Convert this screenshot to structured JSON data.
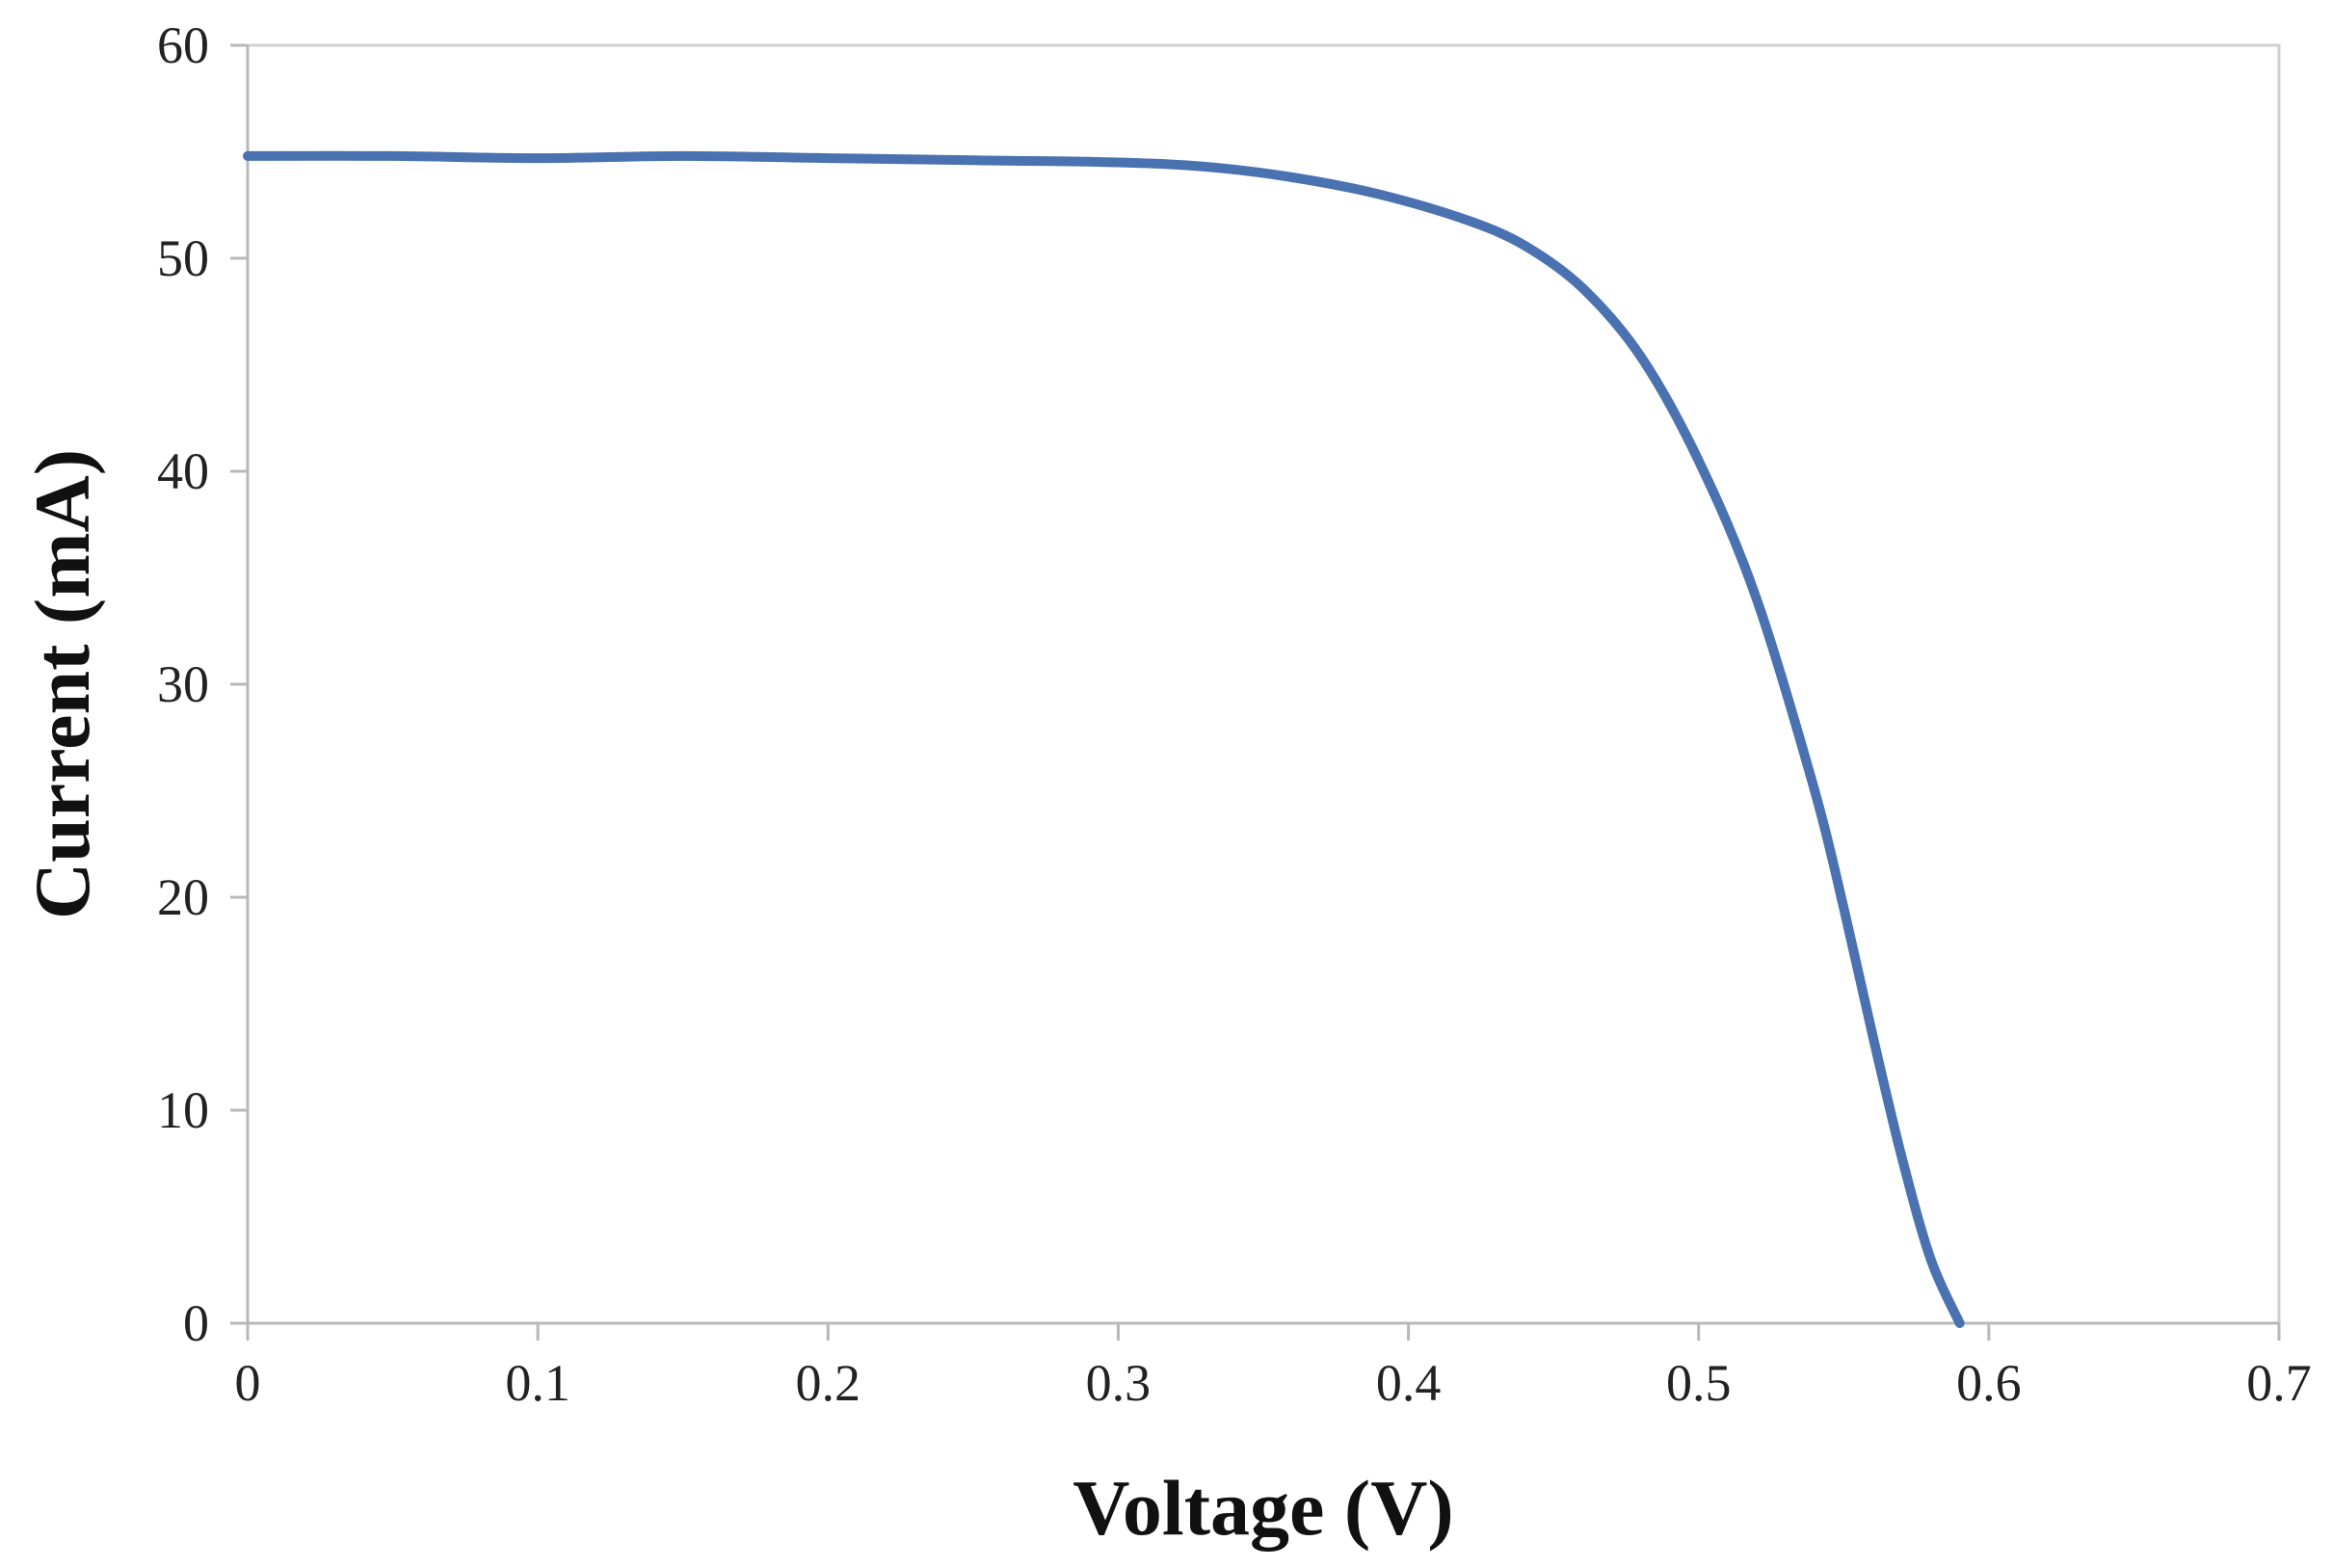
{
  "chart_data": {
    "type": "line",
    "title": "",
    "xlabel": "Voltage (V)",
    "ylabel": "Current (mA)",
    "xlim": [
      0,
      0.7
    ],
    "ylim": [
      0,
      60
    ],
    "x_ticks": [
      0,
      0.1,
      0.2,
      0.3,
      0.4,
      0.5,
      0.6,
      0.7
    ],
    "x_tick_labels": [
      "0",
      "0.1",
      "0.2",
      "0.3",
      "0.4",
      "0.5",
      "0.6",
      "0.7"
    ],
    "y_ticks": [
      0,
      10,
      20,
      30,
      40,
      50,
      60
    ],
    "y_tick_labels": [
      "0",
      "10",
      "20",
      "30",
      "40",
      "50",
      "60"
    ],
    "grid": false,
    "legend": "none",
    "series_color": "#4a72b0",
    "series": [
      {
        "x": [
          0,
          0.05,
          0.1,
          0.15,
          0.2,
          0.25,
          0.3,
          0.33,
          0.36,
          0.39,
          0.42,
          0.44,
          0.46,
          0.48,
          0.5,
          0.52,
          0.54,
          0.55,
          0.56,
          0.57,
          0.58,
          0.59
        ],
        "y": [
          54.8,
          54.8,
          54.7,
          54.8,
          54.7,
          54.6,
          54.5,
          54.3,
          53.8,
          53.0,
          51.8,
          50.6,
          48.6,
          45.4,
          40.5,
          34.0,
          25.0,
          19.5,
          13.5,
          7.8,
          3.0,
          0
        ]
      }
    ]
  }
}
